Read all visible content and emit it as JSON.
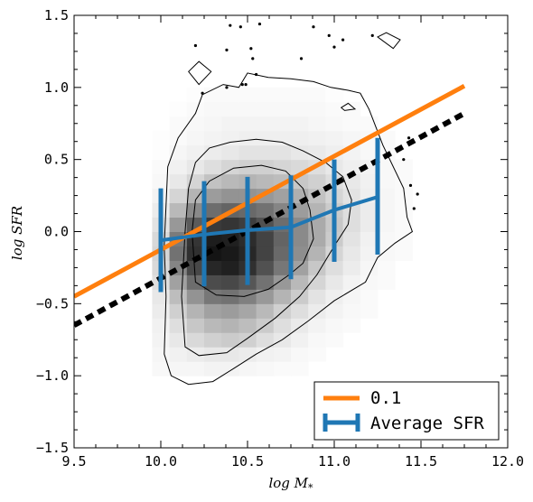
{
  "chart_data": {
    "type": "scatter",
    "title": "",
    "xlabel": "log  M",
    "xlabel_subscript": "*",
    "ylabel": "log  SFR",
    "xlim": [
      9.5,
      12.0
    ],
    "ylim": [
      -1.5,
      1.5
    ],
    "xticks": [
      "9.5",
      "10.0",
      "10.5",
      "11.0",
      "11.5",
      "12.0"
    ],
    "yticks": [
      "1.5",
      "1.0",
      "0.5",
      "0.0",
      "−0.5",
      "−1.0",
      "−1.5"
    ],
    "grid": false,
    "legend_position": "bottom-right",
    "density_hist2d": {
      "x_start": 9.95,
      "y_start": -1.0,
      "bin_width": 0.1,
      "bin_height": 0.1,
      "rows": [
        [
          0.03,
          0.04,
          0.04,
          0.05,
          0.05,
          0.04,
          0.03,
          0.02,
          0.02,
          0,
          0,
          0,
          0,
          0,
          0,
          0,
          0
        ],
        [
          0.04,
          0.06,
          0.08,
          0.1,
          0.1,
          0.08,
          0.06,
          0.05,
          0.03,
          0.02,
          0,
          0,
          0,
          0,
          0,
          0,
          0
        ],
        [
          0.05,
          0.1,
          0.16,
          0.2,
          0.22,
          0.2,
          0.14,
          0.1,
          0.06,
          0.03,
          0.02,
          0,
          0,
          0,
          0,
          0,
          0
        ],
        [
          0.06,
          0.14,
          0.24,
          0.3,
          0.32,
          0.28,
          0.22,
          0.14,
          0.09,
          0.05,
          0.03,
          0.02,
          0,
          0,
          0,
          0,
          0
        ],
        [
          0.08,
          0.2,
          0.32,
          0.4,
          0.42,
          0.38,
          0.3,
          0.2,
          0.14,
          0.08,
          0.05,
          0.03,
          0.02,
          0,
          0,
          0,
          0
        ],
        [
          0.1,
          0.28,
          0.46,
          0.58,
          0.6,
          0.54,
          0.44,
          0.32,
          0.22,
          0.12,
          0.07,
          0.04,
          0.02,
          0,
          0,
          0,
          0
        ],
        [
          0.14,
          0.4,
          0.62,
          0.76,
          0.78,
          0.72,
          0.6,
          0.44,
          0.3,
          0.18,
          0.1,
          0.05,
          0.03,
          0.02,
          0,
          0,
          0
        ],
        [
          0.16,
          0.52,
          0.78,
          0.92,
          0.95,
          0.88,
          0.74,
          0.58,
          0.4,
          0.24,
          0.14,
          0.08,
          0.04,
          0.02,
          0,
          0,
          0
        ],
        [
          0.18,
          0.6,
          0.88,
          1.0,
          0.98,
          0.92,
          0.8,
          0.64,
          0.48,
          0.32,
          0.18,
          0.1,
          0.05,
          0.03,
          0.02,
          0,
          0
        ],
        [
          0.16,
          0.56,
          0.86,
          0.96,
          0.95,
          0.9,
          0.8,
          0.66,
          0.5,
          0.36,
          0.22,
          0.12,
          0.06,
          0.03,
          0.02,
          0,
          0
        ],
        [
          0.12,
          0.44,
          0.7,
          0.84,
          0.86,
          0.82,
          0.74,
          0.62,
          0.5,
          0.36,
          0.24,
          0.14,
          0.08,
          0.04,
          0.02,
          0,
          0
        ],
        [
          0.08,
          0.3,
          0.5,
          0.62,
          0.66,
          0.64,
          0.6,
          0.52,
          0.42,
          0.32,
          0.22,
          0.14,
          0.08,
          0.04,
          0.02,
          0,
          0
        ],
        [
          0.05,
          0.18,
          0.32,
          0.42,
          0.46,
          0.46,
          0.44,
          0.4,
          0.34,
          0.26,
          0.18,
          0.12,
          0.07,
          0.04,
          0.02,
          0,
          0
        ],
        [
          0.03,
          0.1,
          0.18,
          0.26,
          0.3,
          0.32,
          0.3,
          0.28,
          0.24,
          0.2,
          0.14,
          0.1,
          0.06,
          0.03,
          0.02,
          0,
          0
        ],
        [
          0.02,
          0.06,
          0.1,
          0.14,
          0.18,
          0.2,
          0.2,
          0.18,
          0.16,
          0.14,
          0.1,
          0.07,
          0.05,
          0.03,
          0.02,
          0,
          0
        ],
        [
          0.01,
          0.04,
          0.06,
          0.08,
          0.1,
          0.12,
          0.12,
          0.12,
          0.1,
          0.09,
          0.07,
          0.05,
          0.03,
          0.02,
          0,
          0,
          0
        ],
        [
          0.01,
          0.02,
          0.04,
          0.05,
          0.06,
          0.07,
          0.07,
          0.07,
          0.07,
          0.06,
          0.05,
          0.04,
          0.03,
          0.02,
          0,
          0,
          0
        ],
        [
          0,
          0.02,
          0.03,
          0.04,
          0.05,
          0.05,
          0.05,
          0.05,
          0.05,
          0.04,
          0.03,
          0.02,
          0.02,
          0,
          0,
          0,
          0
        ],
        [
          0,
          0.01,
          0.02,
          0.03,
          0.03,
          0.03,
          0.03,
          0.03,
          0.03,
          0.03,
          0.02,
          0.02,
          0,
          0,
          0,
          0,
          0
        ],
        [
          0,
          0,
          0.01,
          0.02,
          0.02,
          0.02,
          0.02,
          0.02,
          0.02,
          0.02,
          0.01,
          0,
          0,
          0,
          0,
          0,
          0
        ]
      ]
    },
    "contours": [
      {
        "level": "outer",
        "points": [
          [
            10.06,
            -1.0
          ],
          [
            10.02,
            -0.85
          ],
          [
            10.03,
            -0.45
          ],
          [
            10.02,
            -0.1
          ],
          [
            10.04,
            0.45
          ],
          [
            10.1,
            0.65
          ],
          [
            10.2,
            0.82
          ],
          [
            10.24,
            0.95
          ],
          [
            10.36,
            1.02
          ],
          [
            10.45,
            1.0
          ],
          [
            10.5,
            1.1
          ],
          [
            10.62,
            1.07
          ],
          [
            10.75,
            1.06
          ],
          [
            10.88,
            1.04
          ],
          [
            10.98,
            1.0
          ],
          [
            11.08,
            0.98
          ],
          [
            11.15,
            0.96
          ],
          [
            11.2,
            0.85
          ],
          [
            11.28,
            0.6
          ],
          [
            11.4,
            0.3
          ],
          [
            11.42,
            0.1
          ],
          [
            11.45,
            0.0
          ],
          [
            11.35,
            -0.08
          ],
          [
            11.25,
            -0.18
          ],
          [
            11.18,
            -0.35
          ],
          [
            11.0,
            -0.48
          ],
          [
            10.85,
            -0.62
          ],
          [
            10.7,
            -0.75
          ],
          [
            10.55,
            -0.85
          ],
          [
            10.42,
            -0.95
          ],
          [
            10.3,
            -1.04
          ],
          [
            10.16,
            -1.06
          ],
          [
            10.06,
            -1.0
          ]
        ]
      },
      {
        "level": "middle",
        "points": [
          [
            10.14,
            -0.8
          ],
          [
            10.12,
            -0.45
          ],
          [
            10.14,
            0.0
          ],
          [
            10.16,
            0.3
          ],
          [
            10.2,
            0.48
          ],
          [
            10.28,
            0.58
          ],
          [
            10.4,
            0.62
          ],
          [
            10.55,
            0.64
          ],
          [
            10.7,
            0.62
          ],
          [
            10.82,
            0.56
          ],
          [
            10.95,
            0.48
          ],
          [
            11.05,
            0.38
          ],
          [
            11.1,
            0.22
          ],
          [
            11.08,
            0.05
          ],
          [
            11.0,
            -0.1
          ],
          [
            10.9,
            -0.3
          ],
          [
            10.8,
            -0.45
          ],
          [
            10.66,
            -0.6
          ],
          [
            10.5,
            -0.74
          ],
          [
            10.38,
            -0.84
          ],
          [
            10.22,
            -0.86
          ],
          [
            10.14,
            -0.8
          ]
        ]
      },
      {
        "level": "inner",
        "points": [
          [
            10.2,
            -0.35
          ],
          [
            10.18,
            0.0
          ],
          [
            10.2,
            0.22
          ],
          [
            10.28,
            0.35
          ],
          [
            10.42,
            0.44
          ],
          [
            10.58,
            0.46
          ],
          [
            10.72,
            0.42
          ],
          [
            10.82,
            0.3
          ],
          [
            10.86,
            0.15
          ],
          [
            10.88,
            -0.05
          ],
          [
            10.82,
            -0.22
          ],
          [
            10.74,
            -0.3
          ],
          [
            10.62,
            -0.4
          ],
          [
            10.48,
            -0.45
          ],
          [
            10.32,
            -0.44
          ],
          [
            10.2,
            -0.35
          ]
        ]
      },
      {
        "level": "island-left",
        "points": [
          [
            10.16,
            1.11
          ],
          [
            10.22,
            1.18
          ],
          [
            10.29,
            1.11
          ],
          [
            10.22,
            1.02
          ],
          [
            10.16,
            1.11
          ]
        ]
      },
      {
        "level": "island-right",
        "points": [
          [
            11.25,
            1.35
          ],
          [
            11.3,
            1.38
          ],
          [
            11.38,
            1.33
          ],
          [
            11.34,
            1.27
          ],
          [
            11.25,
            1.35
          ]
        ]
      },
      {
        "level": "island-small",
        "points": [
          [
            11.04,
            0.86
          ],
          [
            11.08,
            0.89
          ],
          [
            11.12,
            0.85
          ],
          [
            11.06,
            0.84
          ],
          [
            11.04,
            0.86
          ]
        ]
      }
    ],
    "outlier_points": [
      [
        10.2,
        1.29
      ],
      [
        10.38,
        1.26
      ],
      [
        10.4,
        1.43
      ],
      [
        10.46,
        1.42
      ],
      [
        10.57,
        1.44
      ],
      [
        10.52,
        1.27
      ],
      [
        10.53,
        1.2
      ],
      [
        10.55,
        1.09
      ],
      [
        10.47,
        1.02
      ],
      [
        10.49,
        1.02
      ],
      [
        10.38,
        1.0
      ],
      [
        10.24,
        0.96
      ],
      [
        10.81,
        1.2
      ],
      [
        10.88,
        1.42
      ],
      [
        10.97,
        1.36
      ],
      [
        11.05,
        1.33
      ],
      [
        11.0,
        1.28
      ],
      [
        11.22,
        1.36
      ],
      [
        11.4,
        0.5
      ],
      [
        11.44,
        0.32
      ],
      [
        11.48,
        0.26
      ],
      [
        11.46,
        0.16
      ],
      [
        11.43,
        0.65
      ]
    ],
    "series": [
      {
        "name": "0.1",
        "kind": "line",
        "color": "#ff7f0e",
        "x": [
          9.5,
          11.75
        ],
        "y": [
          -0.45,
          1.01
        ]
      },
      {
        "name": "",
        "kind": "dashed-line",
        "color": "#000000",
        "x": [
          9.5,
          11.75
        ],
        "y": [
          -0.65,
          0.82
        ]
      },
      {
        "name": "Average SFR",
        "kind": "errorbar",
        "color": "#1f77b4",
        "x": [
          10.0,
          10.25,
          10.5,
          10.75,
          11.0,
          11.25
        ],
        "y": [
          -0.06,
          -0.02,
          0.01,
          0.03,
          0.15,
          0.24
        ],
        "yerr_low": [
          0.36,
          0.36,
          0.38,
          0.36,
          0.36,
          0.4
        ],
        "yerr_high": [
          0.36,
          0.37,
          0.37,
          0.36,
          0.35,
          0.41
        ]
      }
    ],
    "colors": {
      "orange": "#ff7f0e",
      "blue": "#1f77b4",
      "black": "#000000"
    }
  }
}
